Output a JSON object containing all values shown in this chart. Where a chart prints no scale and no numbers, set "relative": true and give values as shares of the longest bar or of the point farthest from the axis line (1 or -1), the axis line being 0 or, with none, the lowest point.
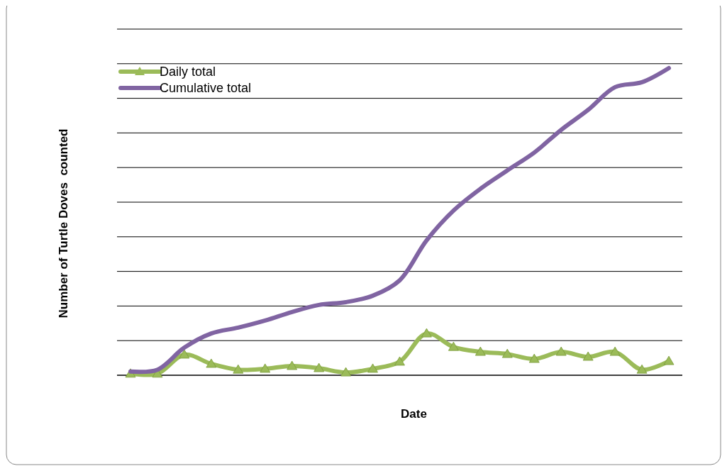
{
  "chart_data": {
    "type": "line",
    "relative": true,
    "xlabel": "Date",
    "ylabel": "Number of Turtle Doves  counted",
    "categories": [
      null,
      null,
      null,
      null,
      null,
      null,
      null,
      null,
      null,
      null,
      null,
      null,
      null,
      null,
      null,
      null,
      null,
      null,
      null,
      null,
      null
    ],
    "series": [
      {
        "name": "Daily total",
        "color": "#9bbb59",
        "marker": "triangle",
        "values": [
          0.005,
          0.005,
          0.067,
          0.037,
          0.018,
          0.021,
          0.03,
          0.023,
          0.009,
          0.021,
          0.044,
          0.136,
          0.092,
          0.076,
          0.069,
          0.053,
          0.076,
          0.06,
          0.076,
          0.018,
          0.046
        ]
      },
      {
        "name": "Cumulative total",
        "color": "#8064a2",
        "marker": "none",
        "values": [
          0.012,
          0.018,
          0.09,
          0.136,
          0.155,
          0.178,
          0.206,
          0.229,
          0.238,
          0.259,
          0.309,
          0.439,
          0.536,
          0.607,
          0.667,
          0.725,
          0.799,
          0.864,
          0.938,
          0.954,
          1
        ]
      }
    ],
    "grid": "y",
    "legend": "top left",
    "line_style": "solid"
  }
}
